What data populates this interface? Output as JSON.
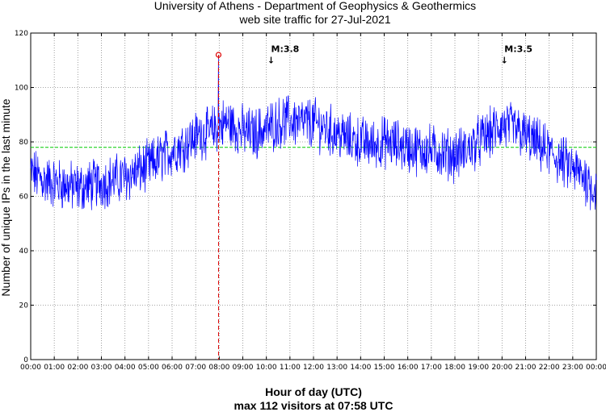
{
  "chart_data": {
    "type": "line",
    "title": "University of Athens - Department of Geophysics & Geothermics",
    "subtitle": "web site traffic for 27-Jul-2021",
    "xlabel": "Hour of day (UTC)",
    "ylabel": "Number of unique IPs in the last minute",
    "footer": "max 112 visitors at 07:58 UTC",
    "xlim": [
      0,
      24
    ],
    "ylim": [
      0,
      120
    ],
    "x_ticks": [
      "00:00",
      "01:00",
      "02:00",
      "03:00",
      "04:00",
      "05:00",
      "06:00",
      "07:00",
      "08:00",
      "09:00",
      "10:00",
      "11:00",
      "12:00",
      "13:00",
      "14:00",
      "15:00",
      "16:00",
      "17:00",
      "18:00",
      "19:00",
      "20:00",
      "21:00",
      "22:00",
      "23:00",
      "00:00"
    ],
    "y_ticks": [
      0,
      20,
      40,
      60,
      80,
      100,
      120
    ],
    "grid": true,
    "series": [
      {
        "color": "#0000ff",
        "x_hours": [
          0,
          0.5,
          1,
          1.5,
          2,
          2.5,
          3,
          3.5,
          4,
          4.5,
          5,
          5.5,
          6,
          6.5,
          7,
          7.5,
          7.97,
          8.5,
          9,
          9.5,
          10,
          10.5,
          11,
          11.5,
          12,
          12.5,
          13,
          13.5,
          14,
          14.5,
          15,
          15.5,
          16,
          16.5,
          17,
          17.5,
          18,
          18.5,
          19,
          19.5,
          20,
          20.5,
          21,
          21.5,
          22,
          22.5,
          23,
          23.5,
          24
        ],
        "values": [
          69,
          66,
          65,
          64,
          63,
          64,
          65,
          66,
          67,
          69,
          71,
          74,
          77,
          79,
          82,
          84,
          112,
          86,
          84,
          83,
          85,
          87,
          88,
          87,
          87,
          85,
          83,
          81,
          80,
          79,
          80,
          79,
          78,
          77,
          77,
          76,
          75,
          77,
          80,
          83,
          86,
          85,
          82,
          79,
          76,
          73,
          70,
          67,
          62
        ]
      }
    ],
    "reference_line": {
      "value": 78,
      "color": "#00cc00"
    },
    "max_marker": {
      "x_hours": 7.97,
      "value": 112,
      "color": "#dd0000"
    },
    "event_markers": [
      {
        "label": "M:3.8",
        "x_hours": 10.2,
        "label_y": 113
      },
      {
        "label": "M:3.5",
        "x_hours": 20.1,
        "label_y": 113
      }
    ]
  }
}
